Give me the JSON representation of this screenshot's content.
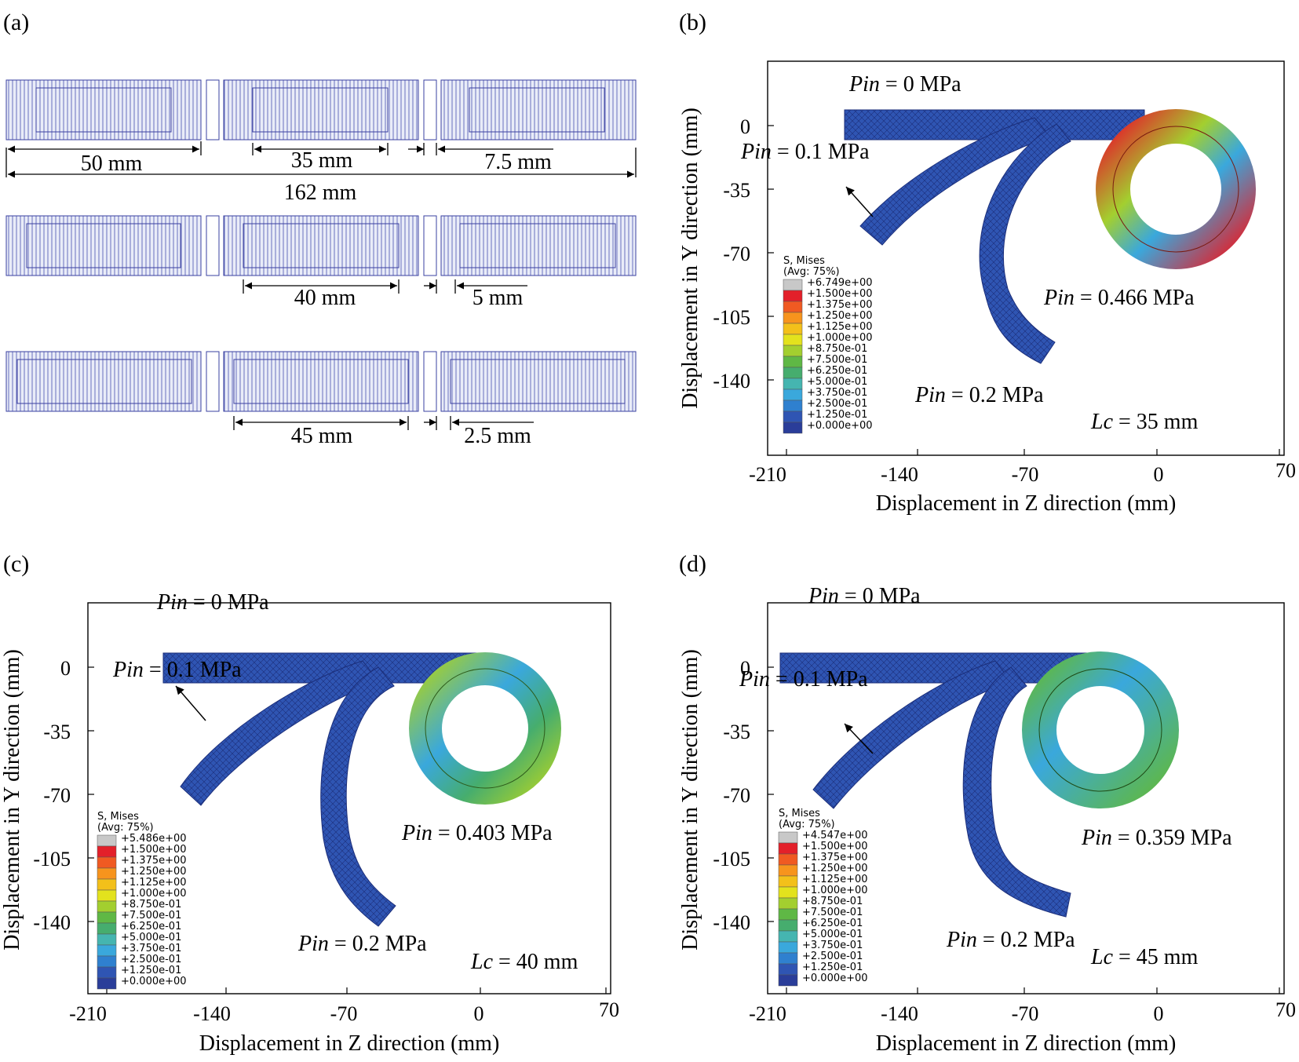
{
  "panel_a": {
    "label": "(a)",
    "dims_row1": [
      "50 mm",
      "35 mm",
      "7.5 mm",
      "162 mm"
    ],
    "dims_row2": [
      "40 mm",
      "5 mm"
    ],
    "dims_row3": [
      "45 mm",
      "2.5 mm"
    ]
  },
  "axes": {
    "xlabel": "Displacement in Z direction (mm)",
    "ylabel": "Displacement in Y direction (mm)",
    "xticks": [
      "-210",
      "-140",
      "-70",
      "0",
      "70"
    ],
    "yticks": [
      "0",
      "-35",
      "-70",
      "-105",
      "-140"
    ]
  },
  "legend": {
    "title1": "S, Mises",
    "title2": "(Avg: 75%)",
    "values": [
      "+1.500e+00",
      "+1.375e+00",
      "+1.250e+00",
      "+1.125e+00",
      "+1.000e+00",
      "+8.750e-01",
      "+7.500e-01",
      "+6.250e-01",
      "+5.000e-01",
      "+3.750e-01",
      "+2.500e-01",
      "+1.250e-01",
      "+0.000e+00"
    ],
    "colors": [
      "#c8c8c8",
      "#e3202a",
      "#f05a22",
      "#f7941d",
      "#f3c01a",
      "#e3e21d",
      "#a3cf2f",
      "#5fb845",
      "#46ad6e",
      "#45b5b0",
      "#3aa8dc",
      "#2f80cf",
      "#2f55b3",
      "#2a3d99"
    ]
  },
  "pressure_labels": {
    "p0": "0 MPa",
    "p01": "0.1 MPa",
    "p02": "0.2 MPa",
    "pin": "Pin"
  },
  "panels": {
    "b": {
      "label": "(b)",
      "max": "+6.749e+00",
      "pmax": "0.466 MPa",
      "lc": "35 mm",
      "lcname": "Lc"
    },
    "c": {
      "label": "(c)",
      "max": "+5.486e+00",
      "pmax": "0.403 MPa",
      "lc": "40 mm",
      "lcname": "Lc"
    },
    "d": {
      "label": "(d)",
      "max": "+4.547e+00",
      "pmax": "0.359 MPa",
      "lc": "45 mm",
      "lcname": "Lc"
    }
  }
}
